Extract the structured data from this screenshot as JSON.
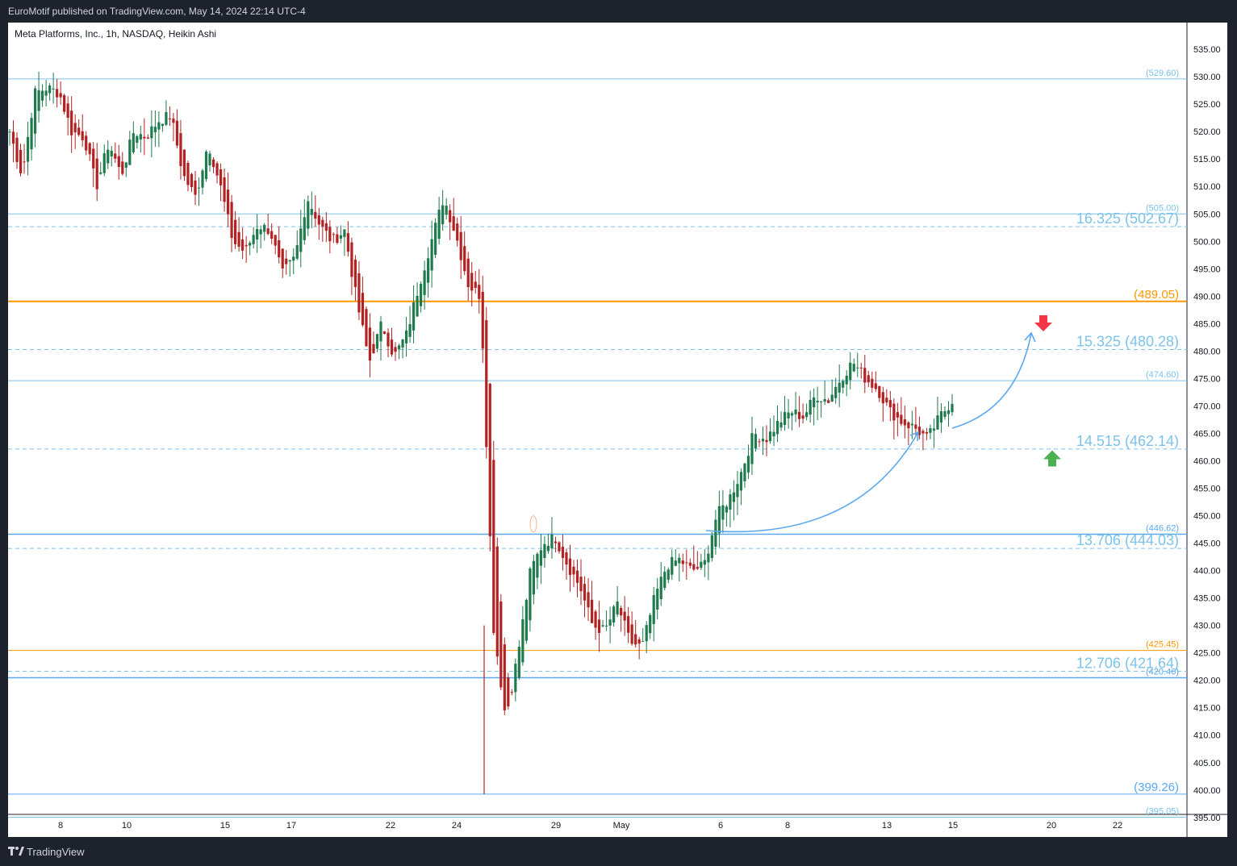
{
  "header": {
    "published_by": "EuroMotif published on TradingView.com, May 14, 2024 22:14 UTC-4"
  },
  "footer": {
    "brand": "TradingView"
  },
  "colors": {
    "background": "#ffffff",
    "frame": "#1e222d",
    "up_candle": "#1f7a4d",
    "down_candle": "#b22222",
    "fib_blue": "#7cc3ea",
    "orange": "#ff9800",
    "annotation_blue": "#5aa8f0",
    "up_arrow": "#4caf50",
    "down_arrow": "#f23645"
  },
  "chart_data": {
    "type": "candlestick",
    "title": "Meta Platforms, Inc., 1h, NASDAQ, Heikin Ashi",
    "symbol": "Meta Platforms, Inc.",
    "interval": "1h",
    "exchange": "NASDAQ",
    "candle_style": "Heikin Ashi",
    "ylim": [
      390,
      537
    ],
    "y_ticks": [
      "535.00",
      "530.00",
      "525.00",
      "520.00",
      "515.00",
      "510.00",
      "505.00",
      "500.00",
      "495.00",
      "490.00",
      "485.00",
      "480.00",
      "475.00",
      "470.00",
      "465.00",
      "460.00",
      "455.00",
      "450.00",
      "445.00",
      "440.00",
      "435.00",
      "430.00",
      "425.00",
      "420.00",
      "415.00",
      "410.00",
      "405.00",
      "400.00",
      "395.00"
    ],
    "x_ticks": [
      "8",
      "10",
      "15",
      "17",
      "22",
      "24",
      "29",
      "May",
      "6",
      "8",
      "13",
      "15",
      "20",
      "22"
    ],
    "horizontal_levels": [
      {
        "price": 529.6,
        "style": "solid",
        "color": "#7cc3ea",
        "label": "(529.60)"
      },
      {
        "price": 505.0,
        "style": "solid",
        "color": "#7cc3ea",
        "label": "(505.00)"
      },
      {
        "price": 502.67,
        "style": "dashed",
        "color": "#7cc3ea",
        "label": "16.325 (502.67)"
      },
      {
        "price": 489.05,
        "style": "solid",
        "color": "#ff9800",
        "label": "(489.05)"
      },
      {
        "price": 480.28,
        "style": "dashed",
        "color": "#7cc3ea",
        "label": "15.325 (480.28)"
      },
      {
        "price": 474.6,
        "style": "solid",
        "color": "#7cc3ea",
        "label": "(474.60)"
      },
      {
        "price": 462.14,
        "style": "dashed",
        "color": "#7cc3ea",
        "label": "14.515 (462.14)"
      },
      {
        "price": 446.62,
        "style": "solid",
        "color": "#5aa8f0",
        "label": "(446.62)"
      },
      {
        "price": 444.03,
        "style": "dashed",
        "color": "#7cc3ea",
        "label": "13.706 (444.03)"
      },
      {
        "price": 425.45,
        "style": "solid",
        "color": "#ff9800",
        "label": "(425.45)"
      },
      {
        "price": 421.64,
        "style": "dashed",
        "color": "#7cc3ea",
        "label": "12.706 (421.64)"
      },
      {
        "price": 420.46,
        "style": "solid",
        "color": "#5aa8f0",
        "label": "(420.46)"
      },
      {
        "price": 399.26,
        "style": "solid",
        "color": "#5aa8f0",
        "label": "(399.26)"
      },
      {
        "price": 395.05,
        "style": "solid",
        "color": "#7cc3ea",
        "label": "(395.05)"
      }
    ],
    "price_path": [
      [
        "Apr 5",
        520
      ],
      [
        "Apr 5",
        512
      ],
      [
        "Apr 8",
        527
      ],
      [
        "Apr 8",
        528
      ],
      [
        "Apr 9",
        527
      ],
      [
        "Apr 10",
        520
      ],
      [
        "Apr 10",
        519
      ],
      [
        "Apr 11",
        510
      ],
      [
        "Apr 11",
        518
      ],
      [
        "Apr 12",
        512
      ],
      [
        "Apr 12",
        520
      ],
      [
        "Apr 15",
        519
      ],
      [
        "Apr 15",
        522
      ],
      [
        "Apr 16",
        523
      ],
      [
        "Apr 16",
        512
      ],
      [
        "Apr 16",
        508
      ],
      [
        "Apr 17",
        518
      ],
      [
        "Apr 17",
        510
      ],
      [
        "Apr 17",
        500
      ],
      [
        "Apr 18",
        498
      ],
      [
        "Apr 18",
        503
      ],
      [
        "Apr 18",
        502
      ],
      [
        "Apr 19",
        494
      ],
      [
        "Apr 19",
        497
      ],
      [
        "Apr 19",
        508
      ],
      [
        "Apr 19",
        503
      ],
      [
        "Apr 22",
        500
      ],
      [
        "Apr 22",
        502
      ],
      [
        "Apr 22",
        489
      ],
      [
        "Apr 22",
        478
      ],
      [
        "Apr 23",
        485
      ],
      [
        "Apr 23",
        479
      ],
      [
        "Apr 23",
        483
      ],
      [
        "Apr 24",
        492
      ],
      [
        "Apr 24",
        500
      ],
      [
        "Apr 24",
        508
      ],
      [
        "Apr 24",
        501
      ],
      [
        "Apr 25",
        492
      ],
      [
        "Apr 25",
        490
      ],
      [
        "Apr 25",
        430
      ],
      [
        "Apr 25",
        413
      ],
      [
        "Apr 26",
        425
      ],
      [
        "Apr 26",
        440
      ],
      [
        "Apr 26",
        445
      ],
      [
        "Apr 29",
        446
      ],
      [
        "Apr 29",
        441
      ],
      [
        "Apr 30",
        437
      ],
      [
        "Apr 30",
        430
      ],
      [
        "May 1",
        429
      ],
      [
        "May 1",
        434
      ],
      [
        "May 2",
        427
      ],
      [
        "May 2",
        426
      ],
      [
        "May 2",
        435
      ],
      [
        "May 3",
        441
      ],
      [
        "May 3",
        442
      ],
      [
        "May 3",
        440
      ],
      [
        "May 6",
        441
      ],
      [
        "May 6",
        450
      ],
      [
        "May 6",
        453
      ],
      [
        "May 7",
        458
      ],
      [
        "May 7",
        465
      ],
      [
        "May 8",
        464
      ],
      [
        "May 8",
        467
      ],
      [
        "May 9",
        469
      ],
      [
        "May 9",
        468
      ],
      [
        "May 9",
        472
      ],
      [
        "May 10",
        471
      ],
      [
        "May 10",
        475
      ],
      [
        "May 10",
        478
      ],
      [
        "May 13",
        475
      ],
      [
        "May 13",
        473
      ],
      [
        "May 13",
        469
      ],
      [
        "May 14",
        467
      ],
      [
        "May 14",
        466
      ],
      [
        "May 14",
        464
      ],
      [
        "May 14",
        468
      ],
      [
        "May 14",
        471
      ]
    ],
    "arrows": [
      {
        "direction": "down",
        "color": "#f23645",
        "near_label": "15.325 (480.28)"
      },
      {
        "direction": "up",
        "color": "#4caf50",
        "near_label": "14.515 (462.14)"
      }
    ],
    "grid": false
  }
}
